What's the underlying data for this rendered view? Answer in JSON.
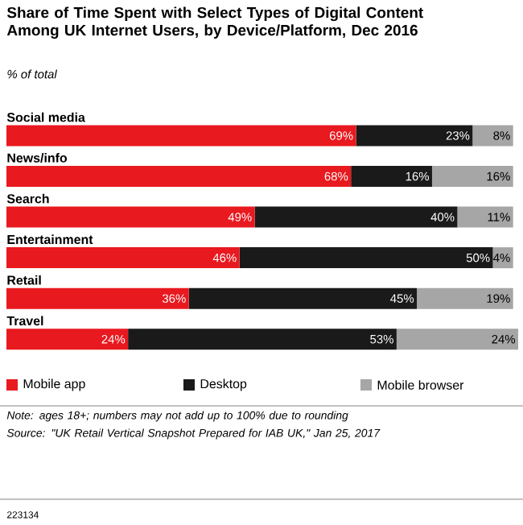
{
  "chart_data": {
    "type": "bar",
    "orientation": "horizontal",
    "stacked": true,
    "title": "Share of Time Spent with Select Types of Digital Content Among UK Internet Users, by Device/Platform, Dec 2016",
    "subtitle": "% of total",
    "categories": [
      "Social media",
      "News/info",
      "Search",
      "Entertainment",
      "Retail",
      "Travel"
    ],
    "series": [
      {
        "name": "Mobile app",
        "color": "#e8191f",
        "values": [
          69,
          68,
          49,
          46,
          36,
          24
        ],
        "value_labels": [
          "69%",
          "68%",
          "49%",
          "46%",
          "36%",
          "24%"
        ]
      },
      {
        "name": "Desktop",
        "color": "#1a1a1a",
        "values": [
          23,
          16,
          40,
          50,
          45,
          53
        ],
        "value_labels": [
          "23%",
          "16%",
          "40%",
          "50%",
          "45%",
          "53%"
        ]
      },
      {
        "name": "Mobile browser",
        "color": "#a6a6a6",
        "values": [
          8,
          16,
          11,
          4,
          19,
          24
        ],
        "value_labels": [
          "8%",
          "16%",
          "11%",
          "4%",
          "19%",
          "24%"
        ]
      }
    ],
    "legend": "bottom",
    "annotations": [
      "Note: ages 18+; numbers may not add up to 100% due to rounding",
      "Source: \"UK Retail Vertical Snapshot Prepared for IAB UK,\" Jan 25, 2017",
      "223134"
    ]
  }
}
